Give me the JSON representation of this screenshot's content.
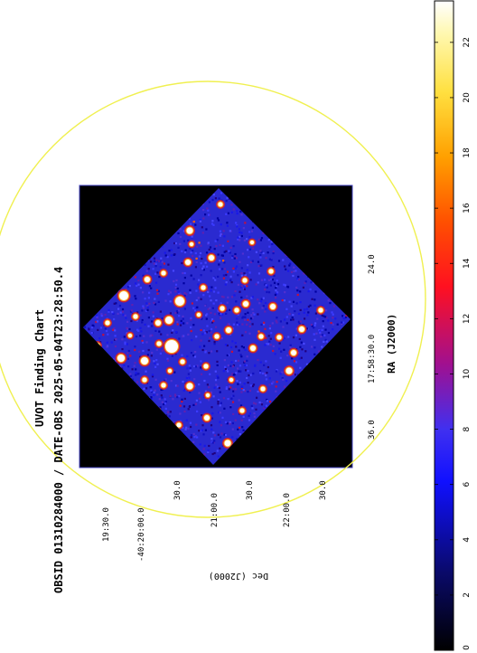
{
  "chart_data": {
    "type": "heatmap",
    "title": "UVOT Finding Chart",
    "subtitle": "OBSID 01310284000 / DATE-OBS 2025-05-04T23:28:50.4",
    "xlabel": "RA (J2000)",
    "ylabel": "Dec (J2000)",
    "ra_ticks": [
      "36.0",
      "17:58:30.0",
      "24.0"
    ],
    "dec_ticks": [
      "19:30.0",
      "-40:20:00.0",
      "30.0",
      "21:00.0",
      "30.0",
      "22:00.0",
      "30.0"
    ],
    "colorbar": {
      "ticks": [
        0,
        2,
        4,
        6,
        8,
        10,
        12,
        14,
        16,
        18,
        20,
        22
      ],
      "range": [
        0,
        23.5
      ],
      "colormap": "heat"
    },
    "colors": {
      "background": "#000000",
      "noise": "#2a2ad0",
      "frame": "#4040c0",
      "circle": "#f0f050",
      "text": "#000000"
    }
  }
}
